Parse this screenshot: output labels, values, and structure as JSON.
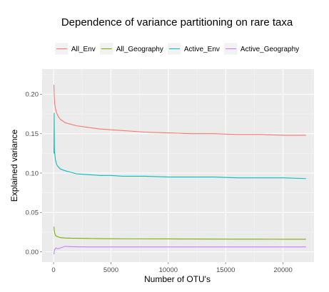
{
  "chart_data": {
    "type": "line",
    "title": "Dependence of variance partitioning on rare taxa",
    "xlabel": "Number of OTU's",
    "ylabel": "Explained variance",
    "xlim": [
      -1000,
      22700
    ],
    "ylim": [
      -0.013,
      0.232
    ],
    "x_ticks": [
      0,
      5000,
      10000,
      15000,
      20000
    ],
    "x_tick_labels": [
      "0",
      "5000",
      "10000",
      "15000",
      "20000"
    ],
    "y_ticks": [
      0.0,
      0.05,
      0.1,
      0.15,
      0.2
    ],
    "y_tick_labels": [
      "0.00",
      "0.05",
      "0.10",
      "0.15",
      "0.20"
    ],
    "grid": true,
    "legend_position": "top",
    "series": [
      {
        "name": "All_Env",
        "color": "#F8766D",
        "x": [
          30,
          60,
          100,
          150,
          250,
          400,
          600,
          800,
          1000,
          1500,
          2000,
          3000,
          4000,
          5000,
          6000,
          8000,
          10000,
          12000,
          14000,
          16000,
          18000,
          20000,
          22000
        ],
        "y": [
          0.212,
          0.197,
          0.188,
          0.183,
          0.177,
          0.172,
          0.168,
          0.166,
          0.164,
          0.162,
          0.16,
          0.158,
          0.156,
          0.155,
          0.154,
          0.152,
          0.151,
          0.15,
          0.15,
          0.149,
          0.149,
          0.148,
          0.148
        ]
      },
      {
        "name": "All_Geography",
        "color": "#7CAE00",
        "x": [
          30,
          60,
          100,
          150,
          250,
          400,
          600,
          800,
          1000,
          1500,
          2000,
          3000,
          4000,
          5000,
          6000,
          8000,
          10000,
          12000,
          14000,
          16000,
          18000,
          20000,
          22000
        ],
        "y": [
          0.032,
          0.027,
          0.024,
          0.021,
          0.02,
          0.019,
          0.018,
          0.0178,
          0.0176,
          0.0173,
          0.0172,
          0.017,
          0.0168,
          0.0167,
          0.0166,
          0.0165,
          0.0164,
          0.0163,
          0.0162,
          0.0161,
          0.0161,
          0.016,
          0.016
        ]
      },
      {
        "name": "Active_Env",
        "color": "#00BFC4",
        "x": [
          30,
          50,
          70,
          100,
          150,
          200,
          300,
          400,
          600,
          800,
          1000,
          1500,
          2000,
          3000,
          4000,
          5000,
          6000,
          8000,
          10000,
          12000,
          14000,
          16000,
          18000,
          20000,
          22000
        ],
        "y": [
          0.125,
          0.176,
          0.128,
          0.126,
          0.118,
          0.114,
          0.11,
          0.108,
          0.105,
          0.104,
          0.103,
          0.101,
          0.099,
          0.098,
          0.097,
          0.097,
          0.096,
          0.096,
          0.095,
          0.095,
          0.095,
          0.094,
          0.094,
          0.094,
          0.093
        ]
      },
      {
        "name": "Active_Geography",
        "color": "#C77CFF",
        "x": [
          30,
          60,
          100,
          150,
          200,
          300,
          400,
          600,
          800,
          1000,
          1200,
          1500,
          2000,
          3000,
          4000,
          5000,
          6000,
          8000,
          10000,
          12000,
          14000,
          16000,
          18000,
          20000,
          22000
        ],
        "y": [
          -0.003,
          0.001,
          0.003,
          0.004,
          0.005,
          0.004,
          0.004,
          0.005,
          0.006,
          0.007,
          0.0068,
          0.0066,
          0.0064,
          0.0063,
          0.0063,
          0.0063,
          0.0063,
          0.0063,
          0.0063,
          0.0063,
          0.0063,
          0.0063,
          0.0063,
          0.0063,
          0.0063
        ]
      }
    ]
  }
}
